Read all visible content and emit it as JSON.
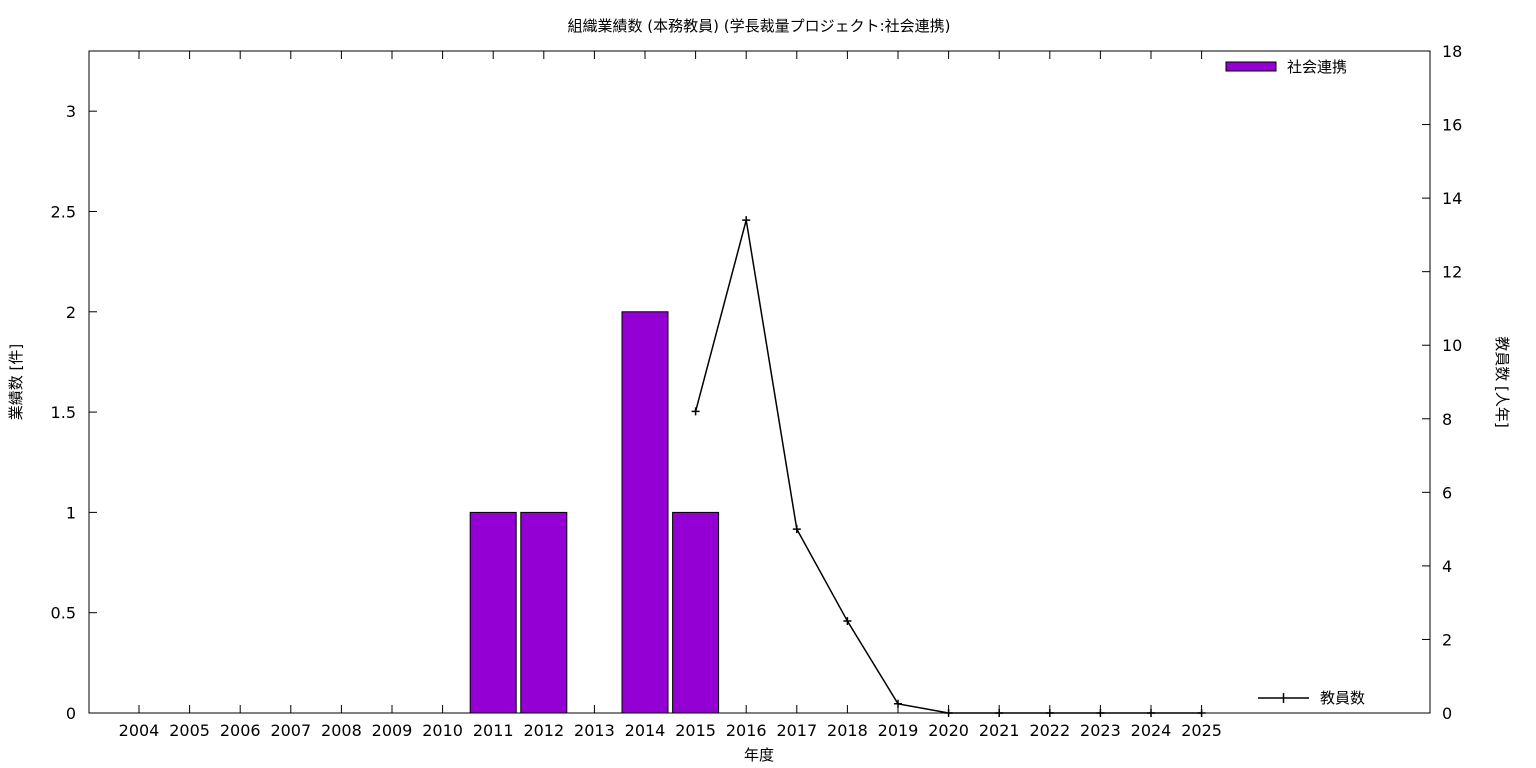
{
  "chart_data": {
    "type": "bar",
    "title": "組織業績数 (本務教員) (学長裁量プロジェクト:社会連携)",
    "xlabel": "年度",
    "ylabel": "業績数 [件]",
    "y2label": "教員数 [人年]",
    "categories": [
      "2004",
      "2005",
      "2006",
      "2007",
      "2008",
      "2009",
      "2010",
      "2011",
      "2012",
      "2013",
      "2014",
      "2015",
      "2016",
      "2017",
      "2018",
      "2019",
      "2020",
      "2021",
      "2022",
      "2023",
      "2024",
      "2025"
    ],
    "ylim": [
      0,
      3.3
    ],
    "yticks": [
      "0",
      "0.5",
      "1",
      "1.5",
      "2",
      "2.5",
      "3"
    ],
    "y2lim": [
      0,
      18
    ],
    "y2ticks": [
      "0",
      "2",
      "4",
      "6",
      "8",
      "10",
      "12",
      "14",
      "16",
      "18"
    ],
    "series": [
      {
        "name": "社会連携",
        "type": "bar",
        "axis": "left",
        "color": "#9400d3",
        "values": [
          0,
          0,
          0,
          0,
          0,
          0,
          0,
          1,
          1,
          0,
          2,
          1,
          0,
          0,
          0,
          0,
          0,
          0,
          0,
          0,
          0,
          0
        ]
      },
      {
        "name": "教員数",
        "type": "line",
        "axis": "right",
        "color": "#000000",
        "values": [
          null,
          null,
          null,
          null,
          null,
          null,
          null,
          null,
          null,
          null,
          null,
          8.2,
          13.4,
          5.0,
          2.5,
          0.25,
          0.0,
          0.0,
          0.0,
          0.0,
          0.0,
          0.0
        ]
      }
    ],
    "grid": false,
    "legend": [
      "top-right",
      "bottom-right"
    ]
  }
}
